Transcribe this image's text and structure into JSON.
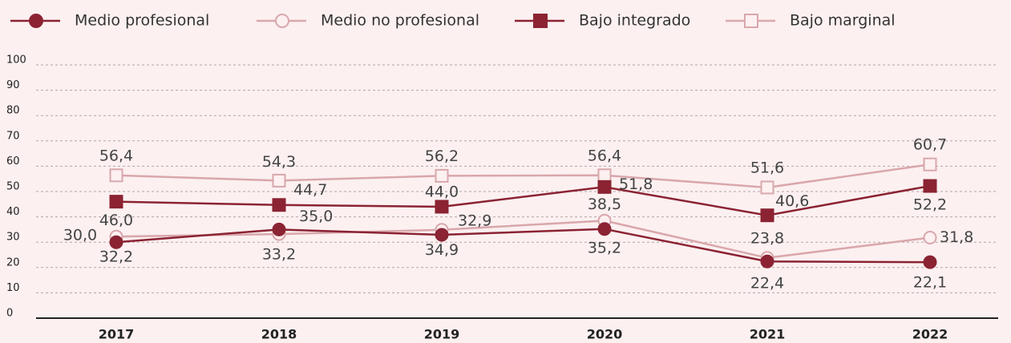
{
  "chart_data": {
    "type": "line",
    "categories": [
      "2017",
      "2018",
      "2019",
      "2020",
      "2021",
      "2022"
    ],
    "series": [
      {
        "name": "Medio profesional",
        "color": "#8b2332",
        "marker": "circle",
        "filled": true,
        "values": [
          30.0,
          35.0,
          32.9,
          35.2,
          22.4,
          22.1
        ],
        "value_labels": [
          "30,0",
          "35,0",
          "32,9",
          "35,2",
          "22,4",
          "22,1"
        ]
      },
      {
        "name": "Medio no profesional",
        "color": "#d9a7ab",
        "marker": "circle",
        "filled": false,
        "values": [
          32.2,
          33.2,
          34.9,
          38.5,
          23.8,
          31.8
        ],
        "value_labels": [
          "32,2",
          "33,2",
          "34,9",
          "38,5",
          "23,8",
          "31,8"
        ]
      },
      {
        "name": "Bajo integrado",
        "color": "#8b2332",
        "marker": "square",
        "filled": true,
        "values": [
          46.0,
          44.7,
          44.0,
          51.8,
          40.6,
          52.2
        ],
        "value_labels": [
          "46,0",
          "44,7",
          "44,0",
          "51,8",
          "40,6",
          "52,2"
        ]
      },
      {
        "name": "Bajo marginal",
        "color": "#d9a7ab",
        "marker": "square",
        "filled": false,
        "values": [
          56.4,
          54.3,
          56.2,
          56.4,
          51.6,
          60.7
        ],
        "value_labels": [
          "56,4",
          "54,3",
          "56,2",
          "56,4",
          "51,6",
          "60,7"
        ]
      }
    ],
    "ylim": [
      0,
      100
    ],
    "yticks": [
      0,
      10,
      20,
      30,
      40,
      50,
      60,
      70,
      80,
      90,
      100
    ],
    "grid": true,
    "legend": "top"
  }
}
